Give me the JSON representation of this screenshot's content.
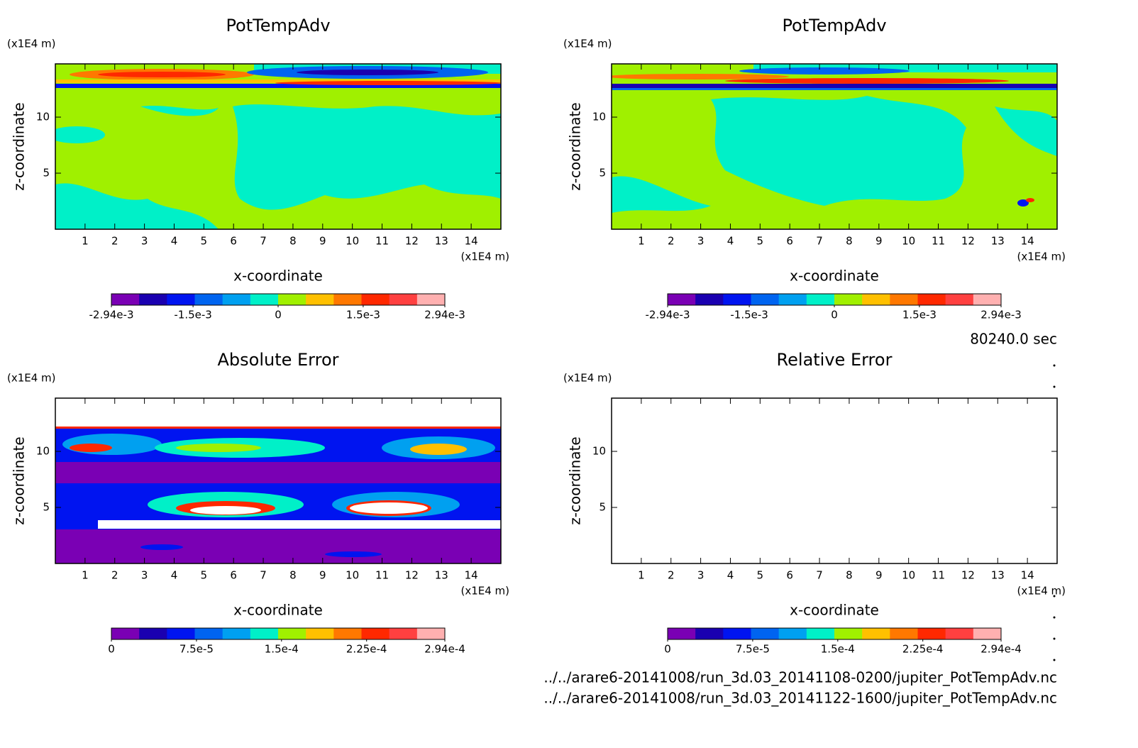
{
  "chart_data": [
    {
      "type": "contour",
      "title": "PotTempAdv",
      "xlabel": "x-coordinate",
      "ylabel": "z-coordinate",
      "x_unit": "(x1E4 m)",
      "y_unit": "(x1E4 m)",
      "xlim": [
        0,
        15
      ],
      "ylim": [
        0,
        14.75
      ],
      "xticks": [
        1,
        2,
        3,
        4,
        5,
        6,
        7,
        8,
        9,
        10,
        11,
        12,
        13,
        14
      ],
      "yticks": [
        5,
        10
      ],
      "colorbar": {
        "colors": [
          "#7a00b4",
          "#1a00b0",
          "#0014f0",
          "#0064f0",
          "#00a0f0",
          "#00f0c8",
          "#a0f000",
          "#ffc000",
          "#ff7800",
          "#ff2800",
          "#ff4040",
          "#ffb0b0"
        ],
        "lim": [
          -0.00294,
          0.00294
        ],
        "ticks": [
          {
            "value": -0.00294,
            "label": "-2.94e-3"
          },
          {
            "value": -0.0015,
            "label": "-1.5e-3"
          },
          0,
          {
            "value": 0.0015,
            "label": "1.5e-3"
          },
          {
            "value": 0.00294,
            "label": "2.94e-3"
          }
        ]
      }
    },
    {
      "type": "contour",
      "title": "PotTempAdv",
      "xlabel": "x-coordinate",
      "ylabel": "z-coordinate",
      "x_unit": "(x1E4 m)",
      "y_unit": "(x1E4 m)",
      "xlim": [
        0,
        15
      ],
      "ylim": [
        0,
        14.75
      ],
      "xticks": [
        1,
        2,
        3,
        4,
        5,
        6,
        7,
        8,
        9,
        10,
        11,
        12,
        13,
        14
      ],
      "yticks": [
        5,
        10
      ],
      "colorbar": {
        "colors": [
          "#7a00b4",
          "#1a00b0",
          "#0014f0",
          "#0064f0",
          "#00a0f0",
          "#00f0c8",
          "#a0f000",
          "#ffc000",
          "#ff7800",
          "#ff2800",
          "#ff4040",
          "#ffb0b0"
        ],
        "lim": [
          -0.00294,
          0.00294
        ],
        "ticks": [
          {
            "value": -0.00294,
            "label": "-2.94e-3"
          },
          {
            "value": -0.0015,
            "label": "-1.5e-3"
          },
          0,
          {
            "value": 0.0015,
            "label": "1.5e-3"
          },
          {
            "value": 0.00294,
            "label": "2.94e-3"
          }
        ]
      }
    },
    {
      "type": "contour",
      "title": "Absolute Error",
      "xlabel": "x-coordinate",
      "ylabel": "z-coordinate",
      "x_unit": "(x1E4 m)",
      "y_unit": "(x1E4 m)",
      "xlim": [
        0,
        15
      ],
      "ylim": [
        0,
        14.75
      ],
      "xticks": [
        1,
        2,
        3,
        4,
        5,
        6,
        7,
        8,
        9,
        10,
        11,
        12,
        13,
        14
      ],
      "yticks": [
        5,
        10
      ],
      "colorbar": {
        "colors": [
          "#7a00b4",
          "#1a00b0",
          "#0014f0",
          "#0064f0",
          "#00a0f0",
          "#00f0c8",
          "#a0f000",
          "#ffc000",
          "#ff7800",
          "#ff2800",
          "#ff4040",
          "#ffb0b0"
        ],
        "lim": [
          0,
          0.000294
        ],
        "ticks": [
          0,
          {
            "value": 7.5e-05,
            "label": "7.5e-5"
          },
          {
            "value": 0.00015,
            "label": "1.5e-4"
          },
          {
            "value": 0.000225,
            "label": "2.25e-4"
          },
          {
            "value": 0.000294,
            "label": "2.94e-4"
          }
        ]
      }
    },
    {
      "type": "contour",
      "title": "Relative Error",
      "xlabel": "x-coordinate",
      "ylabel": "z-coordinate",
      "x_unit": "(x1E4 m)",
      "y_unit": "(x1E4 m)",
      "xlim": [
        0,
        15
      ],
      "ylim": [
        0,
        14.75
      ],
      "xticks": [
        1,
        2,
        3,
        4,
        5,
        6,
        7,
        8,
        9,
        10,
        11,
        12,
        13,
        14
      ],
      "yticks": [
        5,
        10
      ],
      "colorbar": {
        "colors": [
          "#7a00b4",
          "#1a00b0",
          "#0014f0",
          "#0064f0",
          "#00a0f0",
          "#00f0c8",
          "#a0f000",
          "#ffc000",
          "#ff7800",
          "#ff2800",
          "#ff4040",
          "#ffb0b0"
        ],
        "lim": [
          0,
          0.000294
        ],
        "ticks": [
          0,
          {
            "value": 7.5e-05,
            "label": "7.5e-5"
          },
          {
            "value": 0.00015,
            "label": "1.5e-4"
          },
          {
            "value": 0.000225,
            "label": "2.25e-4"
          },
          {
            "value": 0.000294,
            "label": "2.94e-4"
          }
        ]
      }
    }
  ],
  "time_label": "80240.0 sec",
  "files": [
    "../../arare6-20141008/run_3d.03_20141108-0200/jupiter_PotTempAdv.nc",
    "../../arare6-20141008/run_3d.03_20141122-1600/jupiter_PotTempAdv.nc"
  ]
}
